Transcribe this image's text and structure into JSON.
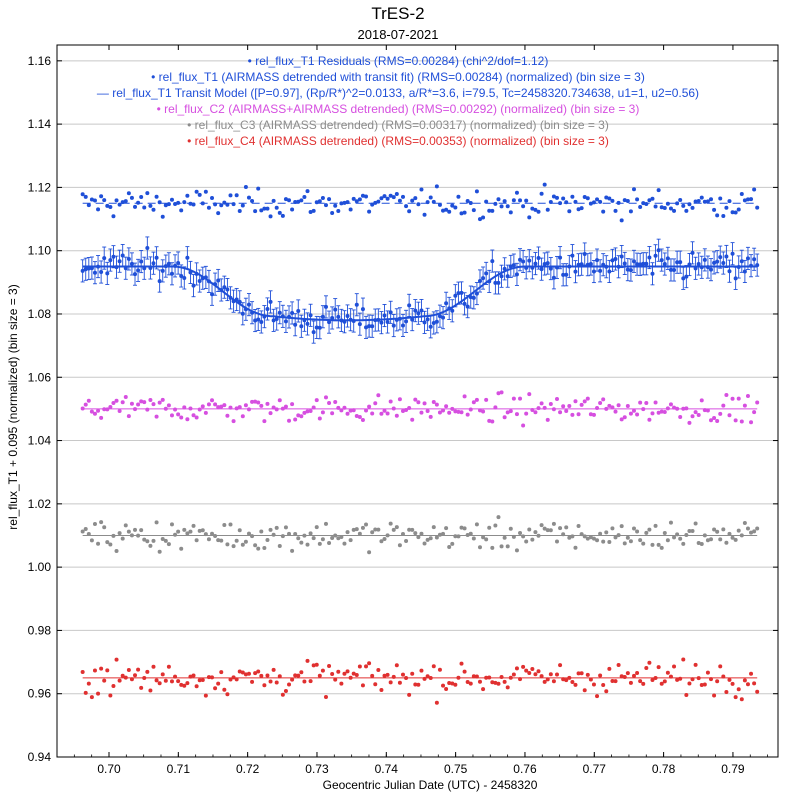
{
  "chart_data": {
    "type": "scatter",
    "title": "TrES-2",
    "subtitle": "2018-07-2021",
    "xlabel": "Geocentric Julian Date (UTC) - 2458320",
    "ylabel": "rel_flux_T1 + 0.095 (normalized) (bin size = 3)",
    "xlim": [
      0.6925,
      0.7965
    ],
    "ylim": [
      0.94,
      1.165
    ],
    "x_ticks": [
      "0.70",
      "0.71",
      "0.72",
      "0.73",
      "0.74",
      "0.75",
      "0.76",
      "0.77",
      "0.78",
      "0.79"
    ],
    "x_tick_values": [
      0.7,
      0.71,
      0.72,
      0.73,
      0.74,
      0.75,
      0.76,
      0.77,
      0.78,
      0.79
    ],
    "y_ticks": [
      "0.94",
      "0.96",
      "0.98",
      "1.00",
      "1.02",
      "1.04",
      "1.06",
      "1.08",
      "1.10",
      "1.12",
      "1.14",
      "1.16"
    ],
    "y_tick_values": [
      0.94,
      0.96,
      0.98,
      1.0,
      1.02,
      1.04,
      1.06,
      1.08,
      1.1,
      1.12,
      1.14,
      1.16
    ],
    "grid": "horizontal",
    "legend_placement": "top-center",
    "x_start": 0.6962,
    "x_end": 0.7935,
    "n_points": 220,
    "legend": [
      {
        "marker": "•",
        "label": "rel_flux_T1 Residuals (RMS=0.00284) (chi^2/dof=1.12)",
        "color": "#1f4fd8"
      },
      {
        "marker": "•",
        "label": "rel_flux_T1 (AIRMASS detrended with transit fit) (RMS=0.00284) (normalized) (bin size = 3)",
        "color": "#1f4fd8"
      },
      {
        "marker": "—",
        "label": "rel_flux_T1 Transit Model ([P=0.97], (Rp/R*)^2=0.0133, a/R*=3.6, i=79.5, Tc=2458320.734638, u1=1, u2=0.56)",
        "color": "#1f4fd8"
      },
      {
        "marker": "•",
        "label": "rel_flux_C2 (AIRMASS+AIRMASS detrended) (RMS=0.00292) (normalized) (bin size = 3)",
        "color": "#d64fe0"
      },
      {
        "marker": "•",
        "label": "rel_flux_C3 (AIRMASS detrended) (RMS=0.00317) (normalized) (bin size = 3)",
        "color": "#8c8c8c"
      },
      {
        "marker": "•",
        "label": "rel_flux_C4 (AIRMASS detrended) (RMS=0.00353) (normalized) (bin size = 3)",
        "color": "#e03030"
      }
    ],
    "transit_model": {
      "baseline": 1.095,
      "depth": 0.0157,
      "ingress_start": 0.7092,
      "ingress_end": 0.7236,
      "egress_start": 0.7455,
      "egress_end": 0.76
    },
    "series": [
      {
        "name": "rel_flux_T1 Residuals",
        "kind": "residuals",
        "level": 1.115,
        "scatter": 0.003,
        "color": "#1f4fd8"
      },
      {
        "name": "rel_flux_T1",
        "kind": "transit",
        "scatter": 0.003,
        "errorbar": 0.0035,
        "color": "#1f4fd8"
      },
      {
        "name": "rel_flux_C2",
        "kind": "flat",
        "level": 1.05,
        "scatter": 0.0029,
        "color": "#d64fe0"
      },
      {
        "name": "rel_flux_C3",
        "kind": "flat",
        "level": 1.01,
        "scatter": 0.0032,
        "color": "#8c8c8c"
      },
      {
        "name": "rel_flux_C4",
        "kind": "flat",
        "level": 0.965,
        "scatter": 0.0035,
        "color": "#e03030"
      }
    ]
  }
}
